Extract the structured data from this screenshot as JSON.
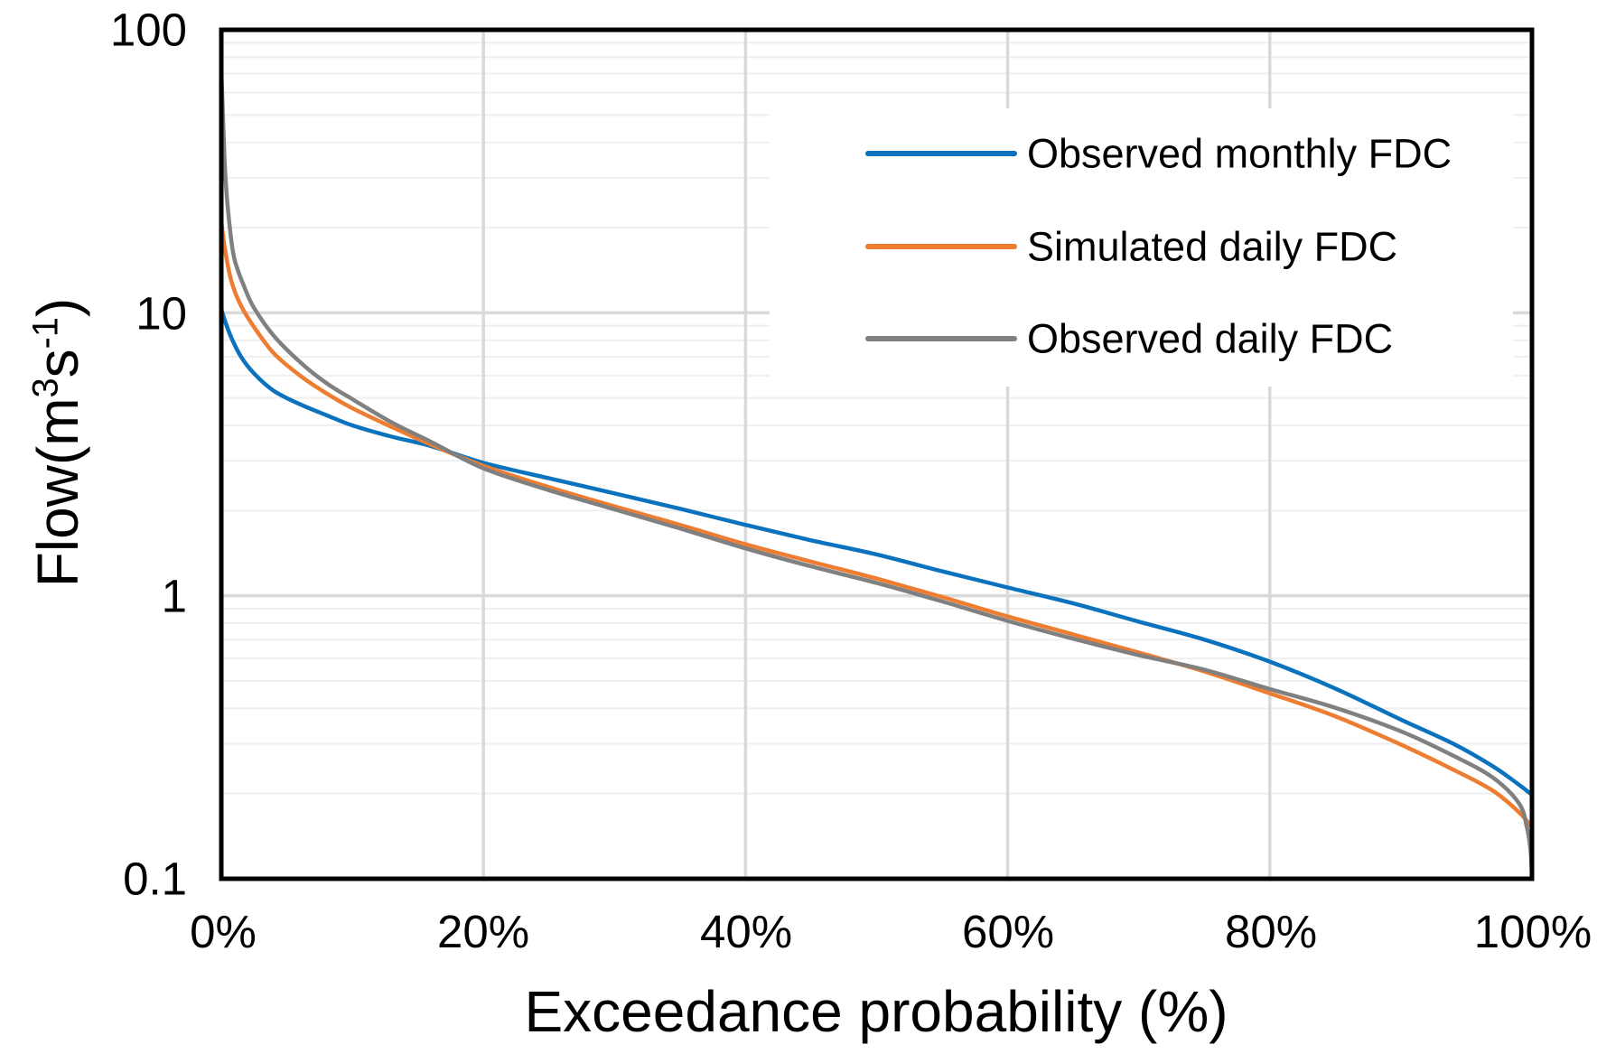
{
  "chart_data": {
    "type": "line",
    "title": "",
    "xlabel": "Exceedance probability (%)",
    "ylabel": "Flow(m³s⁻¹)",
    "x_axis": {
      "min": 0,
      "max": 100,
      "tick_values": [
        0,
        20,
        40,
        60,
        80,
        100
      ],
      "tick_labels": [
        "0%",
        "20%",
        "40%",
        "60%",
        "80%",
        "100%"
      ],
      "major_gridlines": true
    },
    "y_axis": {
      "scale": "log",
      "min": 0.1,
      "max": 100,
      "tick_values": [
        0.1,
        1,
        10,
        100
      ],
      "tick_labels": [
        "0.1",
        "1",
        "10",
        "100"
      ],
      "major_gridlines": true,
      "minor_gridlines": true
    },
    "legend": {
      "position": "top-right-overlay",
      "background": "#FFFFFF"
    },
    "style": {
      "major_grid_color": "#D9D9D9",
      "minor_grid_color": "#EFEFEF",
      "axis_border_color": "#000000",
      "text_color": "#000000",
      "line_width": 4.5
    },
    "series": [
      {
        "name": "Observed monthly FDC",
        "color": "#0B72BE",
        "points": [
          [
            0,
            10.3
          ],
          [
            0.3,
            9.3
          ],
          [
            0.8,
            8.1
          ],
          [
            1.5,
            7.0
          ],
          [
            2.5,
            6.1
          ],
          [
            4,
            5.3
          ],
          [
            6,
            4.75
          ],
          [
            8,
            4.35
          ],
          [
            10,
            4.0
          ],
          [
            13,
            3.65
          ],
          [
            16,
            3.38
          ],
          [
            20,
            2.95
          ],
          [
            25,
            2.6
          ],
          [
            30,
            2.3
          ],
          [
            35,
            2.03
          ],
          [
            40,
            1.78
          ],
          [
            45,
            1.57
          ],
          [
            50,
            1.4
          ],
          [
            55,
            1.22
          ],
          [
            60,
            1.07
          ],
          [
            65,
            0.94
          ],
          [
            70,
            0.81
          ],
          [
            75,
            0.7
          ],
          [
            80,
            0.585
          ],
          [
            85,
            0.47
          ],
          [
            90,
            0.365
          ],
          [
            94,
            0.3
          ],
          [
            97,
            0.25
          ],
          [
            99,
            0.215
          ],
          [
            100,
            0.198
          ]
        ]
      },
      {
        "name": "Simulated daily FDC",
        "color": "#ED7D31",
        "points": [
          [
            0,
            21
          ],
          [
            0.3,
            16.5
          ],
          [
            0.8,
            12.8
          ],
          [
            1.5,
            10.6
          ],
          [
            2.5,
            8.9
          ],
          [
            4,
            7.2
          ],
          [
            6,
            6.0
          ],
          [
            8,
            5.2
          ],
          [
            10,
            4.6
          ],
          [
            13,
            3.95
          ],
          [
            16,
            3.42
          ],
          [
            20,
            2.88
          ],
          [
            25,
            2.42
          ],
          [
            30,
            2.07
          ],
          [
            35,
            1.78
          ],
          [
            40,
            1.52
          ],
          [
            45,
            1.32
          ],
          [
            50,
            1.15
          ],
          [
            55,
            0.99
          ],
          [
            60,
            0.845
          ],
          [
            65,
            0.73
          ],
          [
            70,
            0.63
          ],
          [
            75,
            0.54
          ],
          [
            80,
            0.452
          ],
          [
            85,
            0.375
          ],
          [
            90,
            0.298
          ],
          [
            94,
            0.243
          ],
          [
            97,
            0.205
          ],
          [
            99,
            0.172
          ],
          [
            100,
            0.152
          ]
        ]
      },
      {
        "name": "Observed daily FDC",
        "color": "#808080",
        "points": [
          [
            0,
            72
          ],
          [
            0.15,
            46
          ],
          [
            0.3,
            31
          ],
          [
            0.6,
            21
          ],
          [
            1,
            15.5
          ],
          [
            1.8,
            12.2
          ],
          [
            2.5,
            10.4
          ],
          [
            4,
            8.3
          ],
          [
            6,
            6.7
          ],
          [
            8,
            5.65
          ],
          [
            10,
            4.95
          ],
          [
            13,
            4.1
          ],
          [
            16,
            3.5
          ],
          [
            20,
            2.82
          ],
          [
            25,
            2.36
          ],
          [
            30,
            2.02
          ],
          [
            35,
            1.73
          ],
          [
            40,
            1.47
          ],
          [
            45,
            1.27
          ],
          [
            50,
            1.11
          ],
          [
            55,
            0.955
          ],
          [
            60,
            0.815
          ],
          [
            65,
            0.705
          ],
          [
            70,
            0.617
          ],
          [
            75,
            0.548
          ],
          [
            80,
            0.468
          ],
          [
            85,
            0.402
          ],
          [
            90,
            0.332
          ],
          [
            94,
            0.272
          ],
          [
            97,
            0.228
          ],
          [
            99,
            0.185
          ],
          [
            99.6,
            0.153
          ],
          [
            99.9,
            0.125
          ],
          [
            100,
            0.1
          ]
        ]
      }
    ]
  },
  "ylabel_rich": {
    "p1": "Flow(m",
    "sup1": "3",
    "p2": "s",
    "sup2": "-1",
    "p3": ")"
  }
}
